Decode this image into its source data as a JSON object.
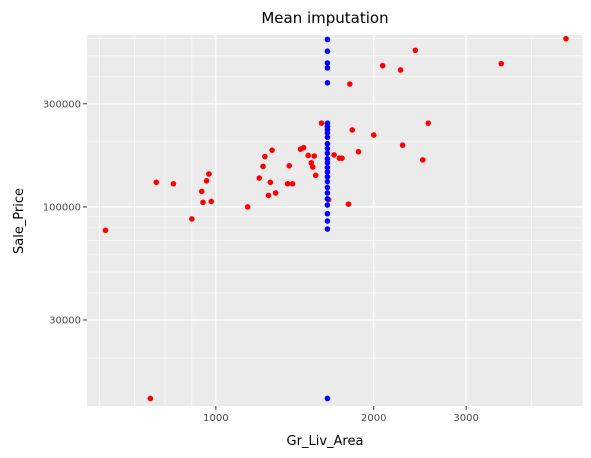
{
  "chart_data": {
    "type": "scatter",
    "title": "Mean imputation",
    "xlabel": "Gr_Liv_Area",
    "ylabel": "Sale_Price",
    "x_scale": "log10",
    "y_scale": "log10",
    "xlim": [
      568,
      5011
    ],
    "ylim": [
      12000,
      624000
    ],
    "x_ticks": [
      1000,
      2000,
      3000
    ],
    "x_tick_labels": [
      "1000",
      "2000",
      "3000"
    ],
    "y_ticks": [
      30000,
      100000,
      300000
    ],
    "y_tick_labels": [
      "30000",
      "100000",
      "300000"
    ],
    "grid": true,
    "legend": "none",
    "colors": {
      "observed": "#ff0000",
      "imputed": "#0000ff",
      "panel": "#ebebeb",
      "grid": "#ffffff"
    },
    "series": [
      {
        "color": "#ff0000",
        "points": [
          [
            616,
            78000
          ],
          [
            750,
            13000
          ],
          [
            770,
            130000
          ],
          [
            830,
            128000
          ],
          [
            900,
            88000
          ],
          [
            940,
            118000
          ],
          [
            945,
            105000
          ],
          [
            960,
            132000
          ],
          [
            970,
            142000
          ],
          [
            980,
            106000
          ],
          [
            1150,
            100000
          ],
          [
            1210,
            136000
          ],
          [
            1230,
            154000
          ],
          [
            1240,
            171000
          ],
          [
            1260,
            113000
          ],
          [
            1270,
            130000
          ],
          [
            1280,
            183000
          ],
          [
            1300,
            116000
          ],
          [
            1370,
            128000
          ],
          [
            1380,
            155000
          ],
          [
            1400,
            128000
          ],
          [
            1450,
            185000
          ],
          [
            1470,
            188000
          ],
          [
            1500,
            173000
          ],
          [
            1520,
            160000
          ],
          [
            1530,
            153000
          ],
          [
            1540,
            172000
          ],
          [
            1550,
            140000
          ],
          [
            1590,
            244000
          ],
          [
            1640,
            108000
          ],
          [
            1680,
            174000
          ],
          [
            1720,
            168000
          ],
          [
            1740,
            168000
          ],
          [
            1790,
            103000
          ],
          [
            1800,
            370000
          ],
          [
            1820,
            227000
          ],
          [
            1870,
            180000
          ],
          [
            2000,
            215000
          ],
          [
            2080,
            450000
          ],
          [
            2250,
            430000
          ],
          [
            2270,
            193000
          ],
          [
            2400,
            530000
          ],
          [
            2480,
            165000
          ],
          [
            2540,
            244000
          ],
          [
            3500,
            460000
          ],
          [
            4650,
            600000
          ]
        ]
      },
      {
        "color": "#0000ff",
        "points": [
          [
            1632,
            595000
          ],
          [
            1632,
            525000
          ],
          [
            1632,
            463000
          ],
          [
            1632,
            440000
          ],
          [
            1632,
            375000
          ],
          [
            1632,
            244000
          ],
          [
            1632,
            236000
          ],
          [
            1632,
            228000
          ],
          [
            1632,
            220000
          ],
          [
            1632,
            210000
          ],
          [
            1632,
            196000
          ],
          [
            1632,
            186000
          ],
          [
            1632,
            177000
          ],
          [
            1632,
            167000
          ],
          [
            1632,
            160000
          ],
          [
            1632,
            152000
          ],
          [
            1632,
            145000
          ],
          [
            1632,
            138000
          ],
          [
            1632,
            131000
          ],
          [
            1632,
            123000
          ],
          [
            1632,
            116000
          ],
          [
            1632,
            109000
          ],
          [
            1632,
            102000
          ],
          [
            1632,
            93000
          ],
          [
            1632,
            86000
          ],
          [
            1632,
            79000
          ],
          [
            1632,
            13000
          ]
        ]
      }
    ]
  }
}
